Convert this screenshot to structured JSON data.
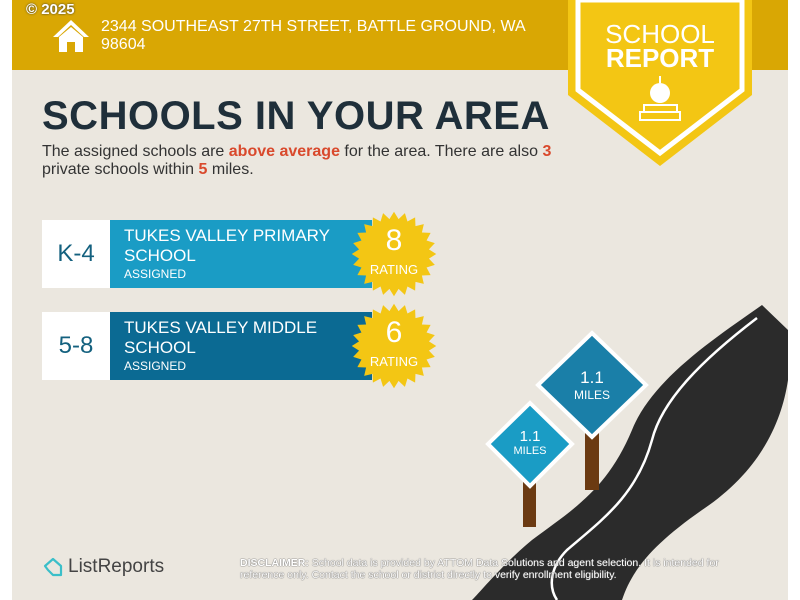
{
  "copyright": "© 2025",
  "header": {
    "address": "2344 SOUTHEAST 27TH STREET, BATTLE GROUND, WA 98604",
    "icon": "house-icon"
  },
  "badge": {
    "line1": "SCHOOL",
    "line2": "REPORT",
    "icon": "apple-books-icon"
  },
  "title": "SCHOOLS IN YOUR AREA",
  "summary": {
    "part1": "The assigned schools are ",
    "highlight": "above average",
    "part2": " for the area. There are also ",
    "private_count": "3",
    "part3": " private schools within ",
    "miles": "5",
    "part4": " miles."
  },
  "schools": [
    {
      "grades": "K-4",
      "name": "TUKES VALLEY PRIMARY SCHOOL",
      "status": "ASSIGNED",
      "rating": "8",
      "rating_label": "RATING",
      "color": "#1a9cc5"
    },
    {
      "grades": "5-8",
      "name": "TUKES VALLEY MIDDLE SCHOOL",
      "status": "ASSIGNED",
      "rating": "6",
      "rating_label": "RATING",
      "color": "#0b6a93"
    }
  ],
  "signs": [
    {
      "distance": "1.1",
      "unit": "MILES"
    },
    {
      "distance": "1.1",
      "unit": "MILES"
    }
  ],
  "footer": {
    "brand": "ListReports",
    "disclaimer_label": "DISCLAIMER:",
    "disclaimer": " School data is provided by ATTOM Data Solutions and agent selection. It is intended for reference only. Contact the school or district directly to verify enrollment eligibility."
  },
  "colors": {
    "gold": "#d9a704",
    "badge": "#f3c614",
    "accent": "#d9492c",
    "navy": "#1f2f3a"
  }
}
